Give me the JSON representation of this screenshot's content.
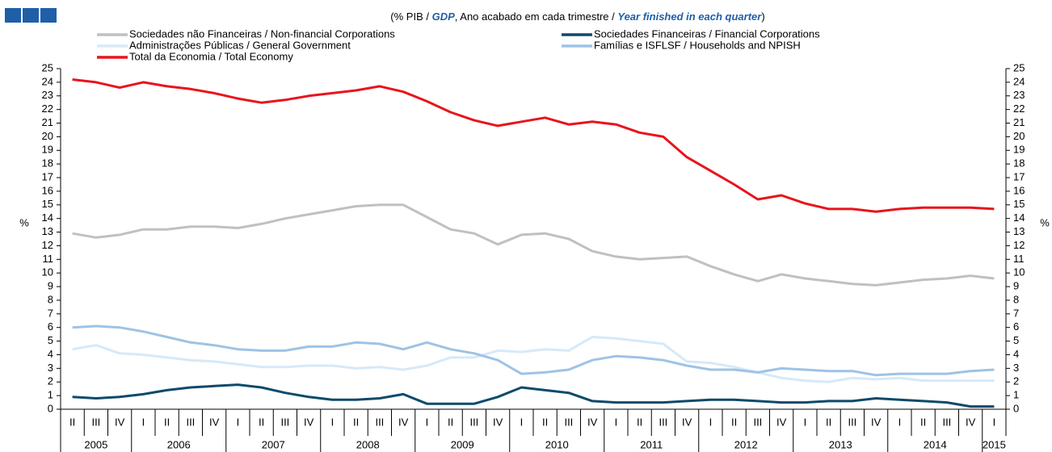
{
  "chart_data": {
    "type": "line",
    "title_parts": [
      "(% PIB / ",
      "GDP",
      ", Ano acabado em cada trimestre / ",
      "Year finished in each quarter",
      ")"
    ],
    "ylabel": "%",
    "y2label": "%",
    "categories": [
      "II",
      "III",
      "IV",
      "I",
      "II",
      "III",
      "IV",
      "I",
      "II",
      "III",
      "IV",
      "I",
      "II",
      "III",
      "IV",
      "I",
      "II",
      "III",
      "IV",
      "I",
      "II",
      "III",
      "IV",
      "I",
      "II",
      "III",
      "IV",
      "I",
      "II",
      "III",
      "IV",
      "I",
      "II",
      "III",
      "IV",
      "I",
      "II",
      "III",
      "IV",
      "I"
    ],
    "x_groups": [
      {
        "label": "2005",
        "count": 3
      },
      {
        "label": "2006",
        "count": 4
      },
      {
        "label": "2007",
        "count": 4
      },
      {
        "label": "2008",
        "count": 4
      },
      {
        "label": "2009",
        "count": 4
      },
      {
        "label": "2010",
        "count": 4
      },
      {
        "label": "2011",
        "count": 4
      },
      {
        "label": "2012",
        "count": 4
      },
      {
        "label": "2013",
        "count": 4
      },
      {
        "label": "2014",
        "count": 4
      },
      {
        "label": "2015",
        "count": 1
      }
    ],
    "ylim": [
      0,
      25
    ],
    "yticks": [
      0,
      1,
      2,
      3,
      4,
      5,
      6,
      7,
      8,
      9,
      10,
      11,
      12,
      13,
      14,
      15,
      16,
      17,
      18,
      19,
      20,
      21,
      22,
      23,
      24,
      25
    ],
    "y2lim": [
      0,
      25
    ],
    "y2ticks": [
      0,
      1,
      2,
      3,
      4,
      5,
      6,
      7,
      8,
      9,
      10,
      11,
      12,
      13,
      14,
      15,
      16,
      17,
      18,
      19,
      20,
      21,
      22,
      23,
      24,
      25
    ],
    "grid": false,
    "series": [
      {
        "name": "Sociedades não Financeiras / Non-financial Corporations",
        "color": "#c0c0c0",
        "values": [
          12.9,
          12.6,
          12.8,
          13.2,
          13.2,
          13.4,
          13.4,
          13.3,
          13.6,
          14.0,
          14.3,
          14.6,
          14.9,
          15.0,
          15.0,
          14.1,
          13.2,
          12.9,
          12.1,
          12.8,
          12.9,
          12.5,
          11.6,
          11.2,
          11.0,
          11.1,
          11.2,
          10.5,
          9.9,
          9.4,
          9.9,
          9.6,
          9.4,
          9.2,
          9.1,
          9.3,
          9.5,
          9.6,
          9.8,
          9.6
        ]
      },
      {
        "name": "Sociedades Financeiras / Financial Corporations",
        "color": "#0d4a6b",
        "values": [
          0.9,
          0.8,
          0.9,
          1.1,
          1.4,
          1.6,
          1.7,
          1.8,
          1.6,
          1.2,
          0.9,
          0.7,
          0.7,
          0.8,
          1.1,
          0.4,
          0.4,
          0.4,
          0.9,
          1.6,
          1.4,
          1.2,
          0.6,
          0.5,
          0.5,
          0.5,
          0.6,
          0.7,
          0.7,
          0.6,
          0.5,
          0.5,
          0.6,
          0.6,
          0.8,
          0.7,
          0.6,
          0.5,
          0.2,
          0.2
        ]
      },
      {
        "name": "Administrações Públicas / General Government",
        "color": "#d6e9f8",
        "values": [
          4.4,
          4.7,
          4.1,
          4.0,
          3.8,
          3.6,
          3.5,
          3.3,
          3.1,
          3.1,
          3.2,
          3.2,
          3.0,
          3.1,
          2.9,
          3.2,
          3.8,
          3.8,
          4.3,
          4.2,
          4.4,
          4.3,
          5.3,
          5.2,
          5.0,
          4.8,
          3.5,
          3.4,
          3.1,
          2.7,
          2.3,
          2.1,
          2.0,
          2.3,
          2.2,
          2.3,
          2.1,
          2.1,
          2.1,
          2.1
        ]
      },
      {
        "name": "Famílias e ISFLSF / Households and NPISH",
        "color": "#9dc3e6",
        "values": [
          6.0,
          6.1,
          6.0,
          5.7,
          5.3,
          4.9,
          4.7,
          4.4,
          4.3,
          4.3,
          4.6,
          4.6,
          4.9,
          4.8,
          4.4,
          4.9,
          4.4,
          4.1,
          3.6,
          2.6,
          2.7,
          2.9,
          3.6,
          3.9,
          3.8,
          3.6,
          3.2,
          2.9,
          2.9,
          2.7,
          3.0,
          2.9,
          2.8,
          2.8,
          2.5,
          2.6,
          2.6,
          2.6,
          2.8,
          2.9
        ]
      },
      {
        "name": "Total da Economia / Total Economy",
        "color": "#e8141c",
        "values": [
          24.2,
          24.0,
          23.6,
          24.0,
          23.7,
          23.5,
          23.2,
          22.8,
          22.5,
          22.7,
          23.0,
          23.2,
          23.4,
          23.7,
          23.3,
          22.6,
          21.8,
          21.2,
          20.8,
          21.1,
          21.4,
          20.9,
          21.1,
          20.9,
          20.3,
          20.0,
          18.5,
          17.5,
          16.5,
          15.4,
          15.7,
          15.1,
          14.7,
          14.7,
          14.5,
          14.7,
          14.8,
          14.8,
          14.8,
          14.7
        ]
      }
    ]
  }
}
